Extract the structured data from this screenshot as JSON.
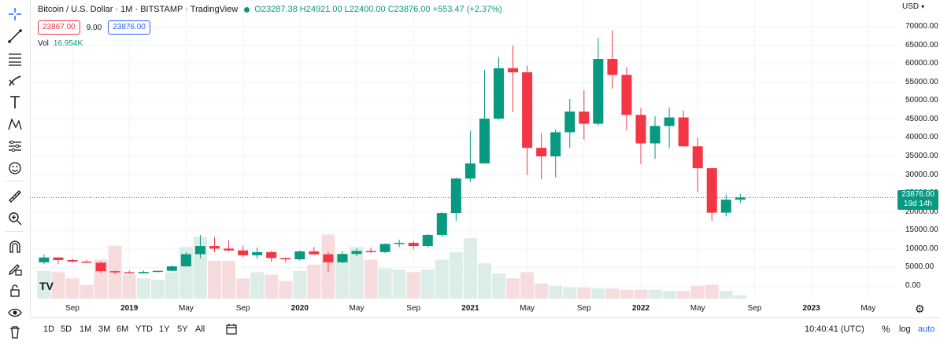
{
  "legend": {
    "symbol": "Bitcoin / U.S. Dollar · 1M · BITSTAMP · TradingView",
    "ohlc": "O23287.38 H24921.00 L22400.00 C23876.00 +553.47 (+2.37%)"
  },
  "trade": {
    "sell": "23867.00",
    "spread": "9.00",
    "buy": "23876.00"
  },
  "volume": {
    "label": "Vol",
    "value": "16.954K"
  },
  "currency": "USD",
  "last_price": {
    "price": "23876.00",
    "countdown": "19d 14h"
  },
  "bottom": {
    "periods": [
      "1D",
      "5D",
      "1M",
      "3M",
      "6M",
      "YTD",
      "1Y",
      "5Y",
      "All"
    ],
    "clock": "10:40:41 (UTC)",
    "pct": "%",
    "log": "log",
    "auto": "auto"
  },
  "colors": {
    "up": "#089981",
    "down": "#f23645",
    "vol_up": "#dbede6",
    "vol_down": "#f7dcde"
  },
  "chart_data": {
    "type": "candlestick",
    "x_tick_labels": [
      "Sep",
      "2019",
      "May",
      "Sep",
      "2020",
      "May",
      "Sep",
      "2021",
      "May",
      "Sep",
      "2022",
      "May",
      "Sep",
      "2023",
      "May"
    ],
    "y_tick_labels": [
      "70000.00",
      "65000.00",
      "60000.00",
      "55000.00",
      "50000.00",
      "45000.00",
      "40000.00",
      "35000.00",
      "30000.00",
      "25000.00",
      "20000.00",
      "15000.00",
      "10000.00",
      "5000.00",
      "0.00"
    ],
    "ylim": [
      0,
      70000
    ],
    "start_month": "2018-07",
    "end_month": "2023-07",
    "candles": [
      {
        "t": "2018-07",
        "o": 6400,
        "h": 8500,
        "l": 5900,
        "c": 7700
      },
      {
        "t": "2018-08",
        "o": 7700,
        "h": 7800,
        "l": 5900,
        "c": 7000
      },
      {
        "t": "2018-09",
        "o": 7000,
        "h": 7400,
        "l": 6200,
        "c": 6600
      },
      {
        "t": "2018-10",
        "o": 6600,
        "h": 7000,
        "l": 6200,
        "c": 6300
      },
      {
        "t": "2018-11",
        "o": 6300,
        "h": 6600,
        "l": 3500,
        "c": 4000
      },
      {
        "t": "2018-12",
        "o": 4000,
        "h": 4200,
        "l": 3200,
        "c": 3700
      },
      {
        "t": "2019-01",
        "o": 3700,
        "h": 4100,
        "l": 3400,
        "c": 3450
      },
      {
        "t": "2019-02",
        "o": 3450,
        "h": 4200,
        "l": 3400,
        "c": 3800
      },
      {
        "t": "2019-03",
        "o": 3800,
        "h": 4100,
        "l": 3700,
        "c": 4100
      },
      {
        "t": "2019-04",
        "o": 4100,
        "h": 5600,
        "l": 4000,
        "c": 5300
      },
      {
        "t": "2019-05",
        "o": 5300,
        "h": 9100,
        "l": 5300,
        "c": 8600
      },
      {
        "t": "2019-06",
        "o": 8600,
        "h": 13800,
        "l": 7500,
        "c": 10800
      },
      {
        "t": "2019-07",
        "o": 10800,
        "h": 13200,
        "l": 9100,
        "c": 10100
      },
      {
        "t": "2019-08",
        "o": 10100,
        "h": 12300,
        "l": 9300,
        "c": 9600
      },
      {
        "t": "2019-09",
        "o": 9600,
        "h": 10900,
        "l": 7800,
        "c": 8300
      },
      {
        "t": "2019-10",
        "o": 8300,
        "h": 10400,
        "l": 7300,
        "c": 9150
      },
      {
        "t": "2019-11",
        "o": 9150,
        "h": 9500,
        "l": 6500,
        "c": 7550
      },
      {
        "t": "2019-12",
        "o": 7550,
        "h": 7700,
        "l": 6400,
        "c": 7200
      },
      {
        "t": "2020-01",
        "o": 7200,
        "h": 9600,
        "l": 6900,
        "c": 9350
      },
      {
        "t": "2020-02",
        "o": 9350,
        "h": 10500,
        "l": 8400,
        "c": 8550
      },
      {
        "t": "2020-03",
        "o": 8550,
        "h": 9200,
        "l": 3800,
        "c": 6400
      },
      {
        "t": "2020-04",
        "o": 6400,
        "h": 9500,
        "l": 6200,
        "c": 8650
      },
      {
        "t": "2020-05",
        "o": 8650,
        "h": 10100,
        "l": 8100,
        "c": 9450
      },
      {
        "t": "2020-06",
        "o": 9450,
        "h": 10400,
        "l": 8900,
        "c": 9150
      },
      {
        "t": "2020-07",
        "o": 9150,
        "h": 11500,
        "l": 8900,
        "c": 11350
      },
      {
        "t": "2020-08",
        "o": 11350,
        "h": 12500,
        "l": 10500,
        "c": 11650
      },
      {
        "t": "2020-09",
        "o": 11650,
        "h": 12100,
        "l": 9900,
        "c": 10800
      },
      {
        "t": "2020-10",
        "o": 10800,
        "h": 14100,
        "l": 10400,
        "c": 13800
      },
      {
        "t": "2020-11",
        "o": 13800,
        "h": 19900,
        "l": 13200,
        "c": 19700
      },
      {
        "t": "2020-12",
        "o": 19700,
        "h": 29300,
        "l": 17600,
        "c": 29000
      },
      {
        "t": "2021-01",
        "o": 29000,
        "h": 41900,
        "l": 28100,
        "c": 33100
      },
      {
        "t": "2021-02",
        "o": 33100,
        "h": 58300,
        "l": 33000,
        "c": 45200
      },
      {
        "t": "2021-03",
        "o": 45200,
        "h": 61800,
        "l": 44900,
        "c": 58800
      },
      {
        "t": "2021-04",
        "o": 58800,
        "h": 64900,
        "l": 47000,
        "c": 57700
      },
      {
        "t": "2021-05",
        "o": 57700,
        "h": 59500,
        "l": 30000,
        "c": 37300
      },
      {
        "t": "2021-06",
        "o": 37300,
        "h": 41300,
        "l": 28800,
        "c": 35000
      },
      {
        "t": "2021-07",
        "o": 35000,
        "h": 42300,
        "l": 29300,
        "c": 41500
      },
      {
        "t": "2021-08",
        "o": 41500,
        "h": 50500,
        "l": 37300,
        "c": 47100
      },
      {
        "t": "2021-09",
        "o": 47100,
        "h": 52900,
        "l": 39600,
        "c": 43800
      },
      {
        "t": "2021-10",
        "o": 43800,
        "h": 67000,
        "l": 43300,
        "c": 61300
      },
      {
        "t": "2021-11",
        "o": 61300,
        "h": 69000,
        "l": 53300,
        "c": 57000
      },
      {
        "t": "2021-12",
        "o": 57000,
        "h": 59100,
        "l": 42000,
        "c": 46200
      },
      {
        "t": "2022-01",
        "o": 46200,
        "h": 48000,
        "l": 32900,
        "c": 38500
      },
      {
        "t": "2022-02",
        "o": 38500,
        "h": 45800,
        "l": 34300,
        "c": 43200
      },
      {
        "t": "2022-03",
        "o": 43200,
        "h": 48200,
        "l": 37200,
        "c": 45500
      },
      {
        "t": "2022-04",
        "o": 45500,
        "h": 47400,
        "l": 37600,
        "c": 37700
      },
      {
        "t": "2022-05",
        "o": 37700,
        "h": 40000,
        "l": 25400,
        "c": 31800
      },
      {
        "t": "2022-06",
        "o": 31800,
        "h": 31900,
        "l": 17600,
        "c": 19800
      },
      {
        "t": "2022-07",
        "o": 19800,
        "h": 24700,
        "l": 18800,
        "c": 23300
      },
      {
        "t": "2022-08",
        "o": 23300,
        "h": 24900,
        "l": 22400,
        "c": 23900
      }
    ],
    "volume_scale": [
      0,
      6
    ],
    "volumes": [
      2.2,
      2.1,
      1.6,
      1.1,
      3.1,
      4.2,
      1.9,
      1.6,
      1.5,
      2.1,
      4.1,
      4.9,
      3.0,
      3.0,
      1.6,
      2.1,
      1.9,
      1.4,
      2.2,
      2.7,
      5.1,
      3.5,
      4.1,
      3.1,
      2.4,
      2.3,
      2.1,
      2.3,
      3.1,
      3.7,
      4.8,
      2.8,
      2.0,
      1.6,
      2.1,
      1.2,
      1.0,
      0.9,
      0.9,
      0.8,
      0.8,
      0.7,
      0.7,
      0.7,
      0.6,
      0.6,
      1.0,
      1.1,
      0.6,
      0.25
    ]
  }
}
